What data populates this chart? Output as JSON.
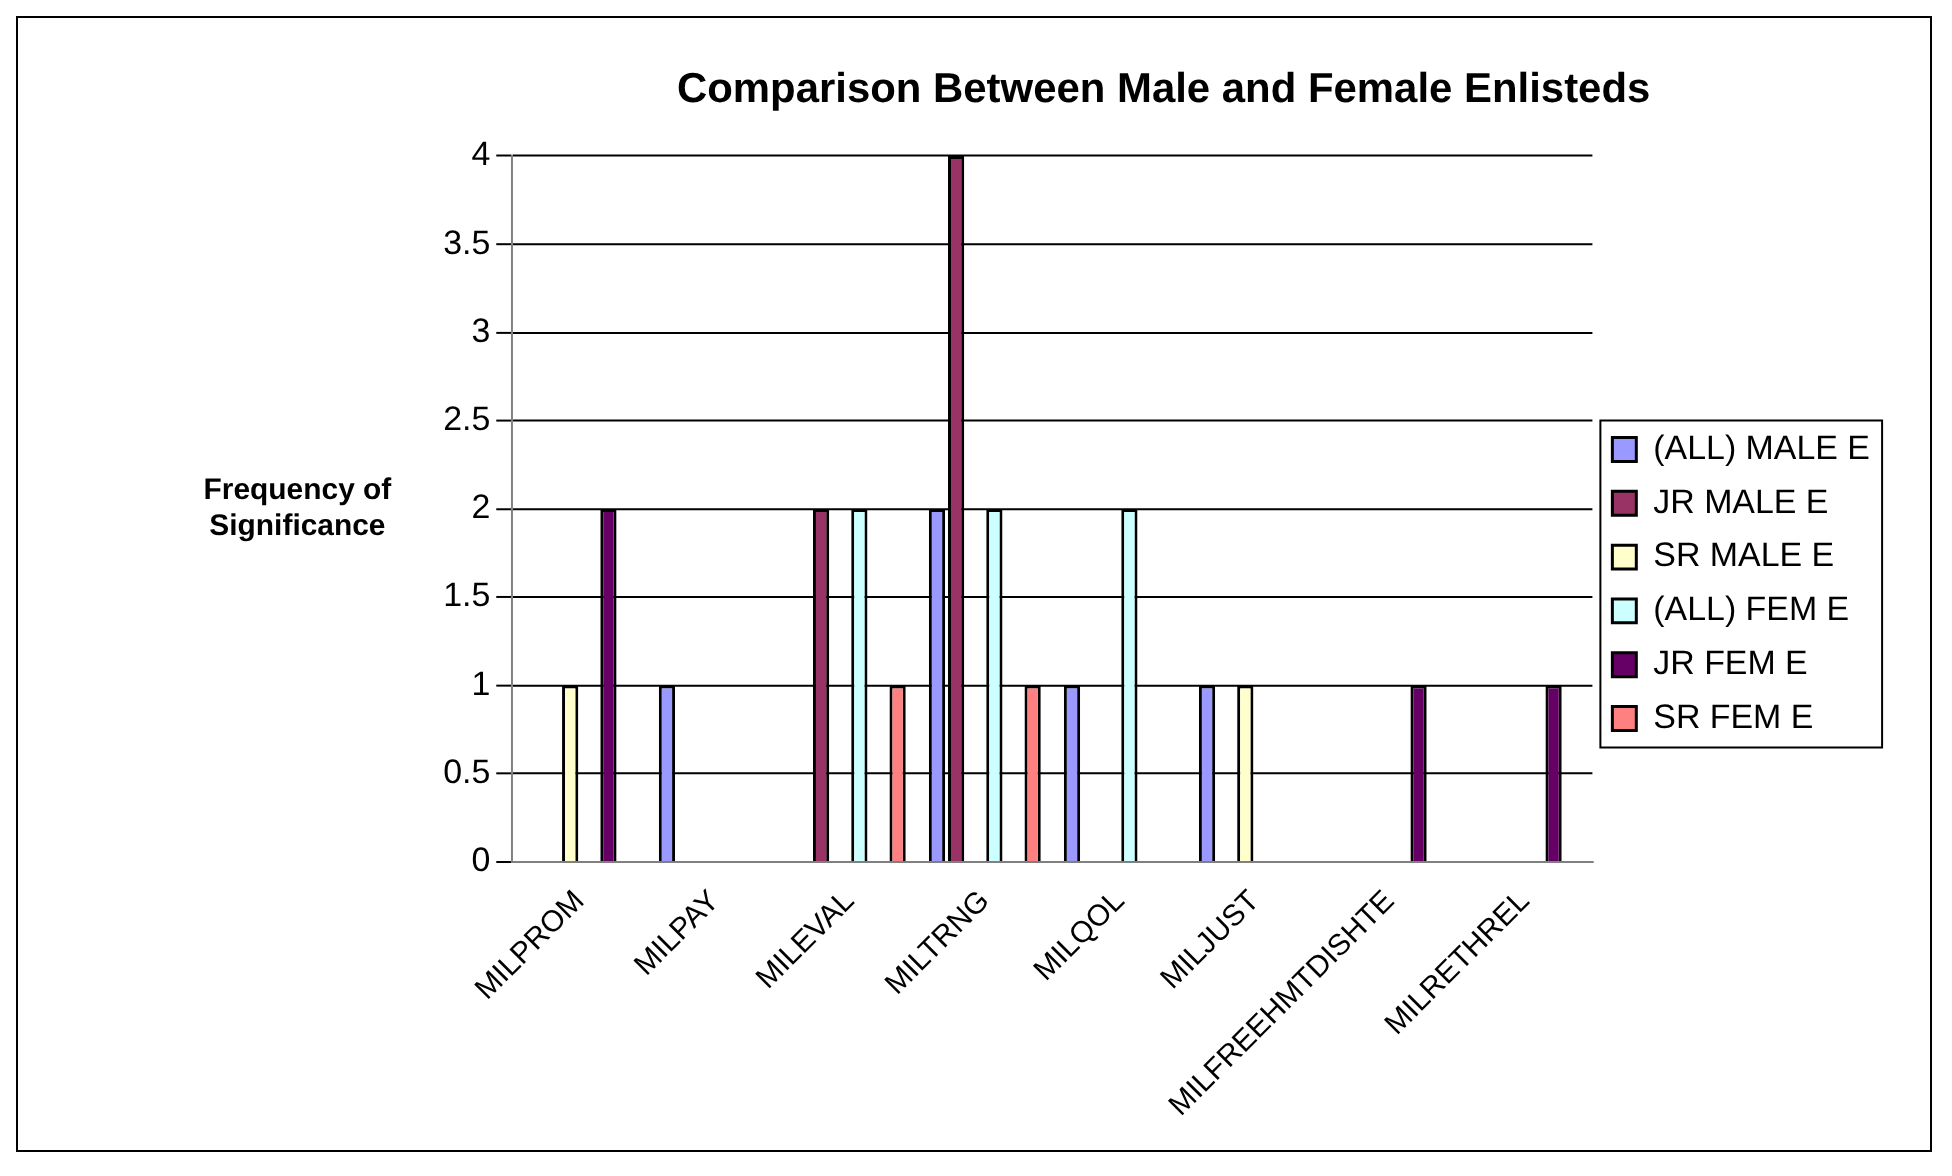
{
  "chart_data": {
    "type": "bar",
    "title": "Comparison Between Male and Female Enlisteds",
    "ylabel": "Frequency of Significance",
    "categories": [
      "MILPROM",
      "MILPAY",
      "MILEVAL",
      "MILTRNG",
      "MILQOL",
      "MILJUST",
      "MILFREEHMTDISHTE",
      "MILRETHREL"
    ],
    "series": [
      {
        "name": "(ALL) MALE E",
        "color": "#9999ff",
        "values": [
          0,
          1,
          0,
          2,
          1,
          1,
          0,
          0
        ]
      },
      {
        "name": "JR MALE E",
        "color": "#993366",
        "values": [
          0,
          0,
          2,
          4,
          0,
          0,
          0,
          0
        ]
      },
      {
        "name": "SR MALE E",
        "color": "#ffffcc",
        "values": [
          1,
          0,
          0,
          0,
          0,
          1,
          0,
          0
        ]
      },
      {
        "name": "(ALL) FEM E",
        "color": "#ccffff",
        "values": [
          0,
          0,
          2,
          2,
          2,
          0,
          0,
          0
        ]
      },
      {
        "name": "JR FEM E",
        "color": "#660066",
        "values": [
          2,
          0,
          0,
          0,
          0,
          0,
          1,
          1
        ]
      },
      {
        "name": "SR FEM E",
        "color": "#ff8080",
        "values": [
          0,
          0,
          1,
          1,
          0,
          0,
          0,
          0
        ]
      }
    ],
    "ylim": [
      0,
      4
    ],
    "yticks": [
      0,
      0.5,
      1,
      1.5,
      2,
      2.5,
      3,
      3.5,
      4
    ],
    "grid": "y",
    "legend": "right"
  }
}
